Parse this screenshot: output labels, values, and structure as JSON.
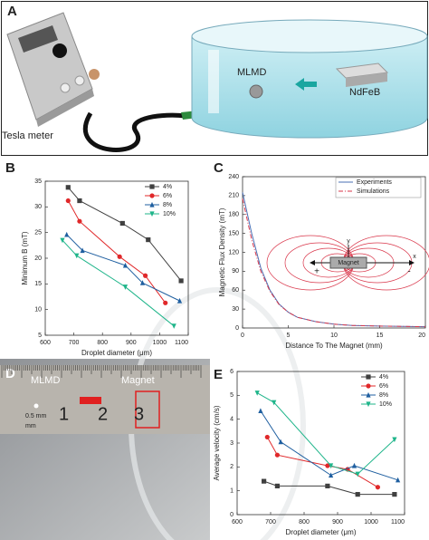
{
  "panel_letters": [
    "A",
    "B",
    "C",
    "D",
    "E"
  ],
  "illustration_a": {
    "device_label": "Tesla meter",
    "droplet_label": "MLMD",
    "magnet_label": "NdFeB"
  },
  "photo_d": {
    "droplet_label": "MLMD",
    "magnet_label": "Magnet",
    "ruler_numbers": [
      "1",
      "2",
      "3"
    ],
    "ruler_unit": "mm",
    "ruler_small": "0.5 mm"
  },
  "chart_data": [
    {
      "type": "line",
      "x_label": "Droplet diameter (μm)",
      "y_label": "Minimum B (mT)",
      "xlim": [
        600,
        1100
      ],
      "xticks": [
        600,
        700,
        800,
        900,
        1000,
        1100
      ],
      "ylim": [
        5,
        35
      ],
      "yticks": [
        5,
        10,
        15,
        20,
        25,
        30,
        35
      ],
      "grid": false,
      "legend": "top-right",
      "series": [
        {
          "name": "4%",
          "color": "#404040",
          "marker": "square",
          "x": [
            680,
            720,
            870,
            960,
            1075
          ],
          "values": [
            33.8,
            31.2,
            26.8,
            23.6,
            15.6
          ]
        },
        {
          "name": "6%",
          "color": "#e0282a",
          "marker": "circle",
          "x": [
            680,
            720,
            860,
            950,
            1020
          ],
          "values": [
            31.2,
            27.2,
            20.3,
            16.6,
            11.3
          ]
        },
        {
          "name": "8%",
          "color": "#1f5fa0",
          "marker": "triangle-up",
          "x": [
            675,
            730,
            880,
            940,
            1070
          ],
          "values": [
            24.6,
            21.5,
            18.6,
            15.2,
            11.7
          ]
        },
        {
          "name": "10%",
          "color": "#1fb58a",
          "marker": "triangle-down",
          "x": [
            660,
            710,
            880,
            1050
          ],
          "values": [
            23.5,
            20.5,
            14.4,
            6.8
          ]
        }
      ]
    },
    {
      "type": "line",
      "x_label": "Distance To The Magnet (mm)",
      "y_label": "Magnetic Flux Density (mT)",
      "xlim": [
        0,
        20
      ],
      "xticks": [
        0,
        5,
        10,
        15,
        20
      ],
      "ylim": [
        0,
        240
      ],
      "yticks": [
        0,
        30,
        60,
        90,
        120,
        150,
        180,
        210,
        240
      ],
      "grid": false,
      "legend": "top-right",
      "series": [
        {
          "name": "Experiments",
          "color": "#4a6fb5",
          "style": "solid",
          "x": [
            0,
            1,
            2,
            3,
            4,
            5,
            6,
            8,
            10,
            12,
            15,
            20
          ],
          "values": [
            215,
            150,
            95,
            60,
            38,
            25,
            17,
            10,
            6,
            4,
            3,
            2
          ]
        },
        {
          "name": "Simulations",
          "color": "#d9364a",
          "style": "dash-dot",
          "x": [
            0,
            1,
            2,
            3,
            4,
            5,
            6,
            8,
            10,
            12,
            15,
            20
          ],
          "values": [
            205,
            140,
            90,
            58,
            37,
            25,
            17,
            10,
            6,
            4,
            3,
            2
          ]
        }
      ],
      "inset": {
        "magnet": "Magnet",
        "y": "y",
        "x": "x",
        "plus": "+",
        "minus": "-"
      }
    },
    {
      "type": "line",
      "x_label": "Droplet diameter (μm)",
      "y_label": "Average velocity (cm/s)",
      "xlim": [
        600,
        1100
      ],
      "xticks": [
        600,
        700,
        800,
        900,
        1000,
        1100
      ],
      "ylim": [
        0,
        6
      ],
      "yticks": [
        0,
        1,
        2,
        3,
        4,
        5,
        6
      ],
      "grid": false,
      "legend": "top-right",
      "series": [
        {
          "name": "4%",
          "color": "#404040",
          "marker": "square",
          "x": [
            680,
            720,
            870,
            960,
            1070
          ],
          "values": [
            1.4,
            1.2,
            1.2,
            0.85,
            0.85
          ]
        },
        {
          "name": "6%",
          "color": "#e0282a",
          "marker": "circle",
          "x": [
            690,
            720,
            870,
            930,
            1020
          ],
          "values": [
            3.25,
            2.5,
            2.05,
            1.9,
            1.15
          ]
        },
        {
          "name": "8%",
          "color": "#1f5fa0",
          "marker": "triangle-up",
          "x": [
            670,
            730,
            880,
            950,
            1080
          ],
          "values": [
            4.35,
            3.05,
            1.65,
            2.05,
            1.45
          ]
        },
        {
          "name": "10%",
          "color": "#1fb58a",
          "marker": "triangle-down",
          "x": [
            660,
            710,
            880,
            960,
            1070
          ],
          "values": [
            5.1,
            4.7,
            2.05,
            1.7,
            3.15
          ]
        }
      ]
    }
  ]
}
